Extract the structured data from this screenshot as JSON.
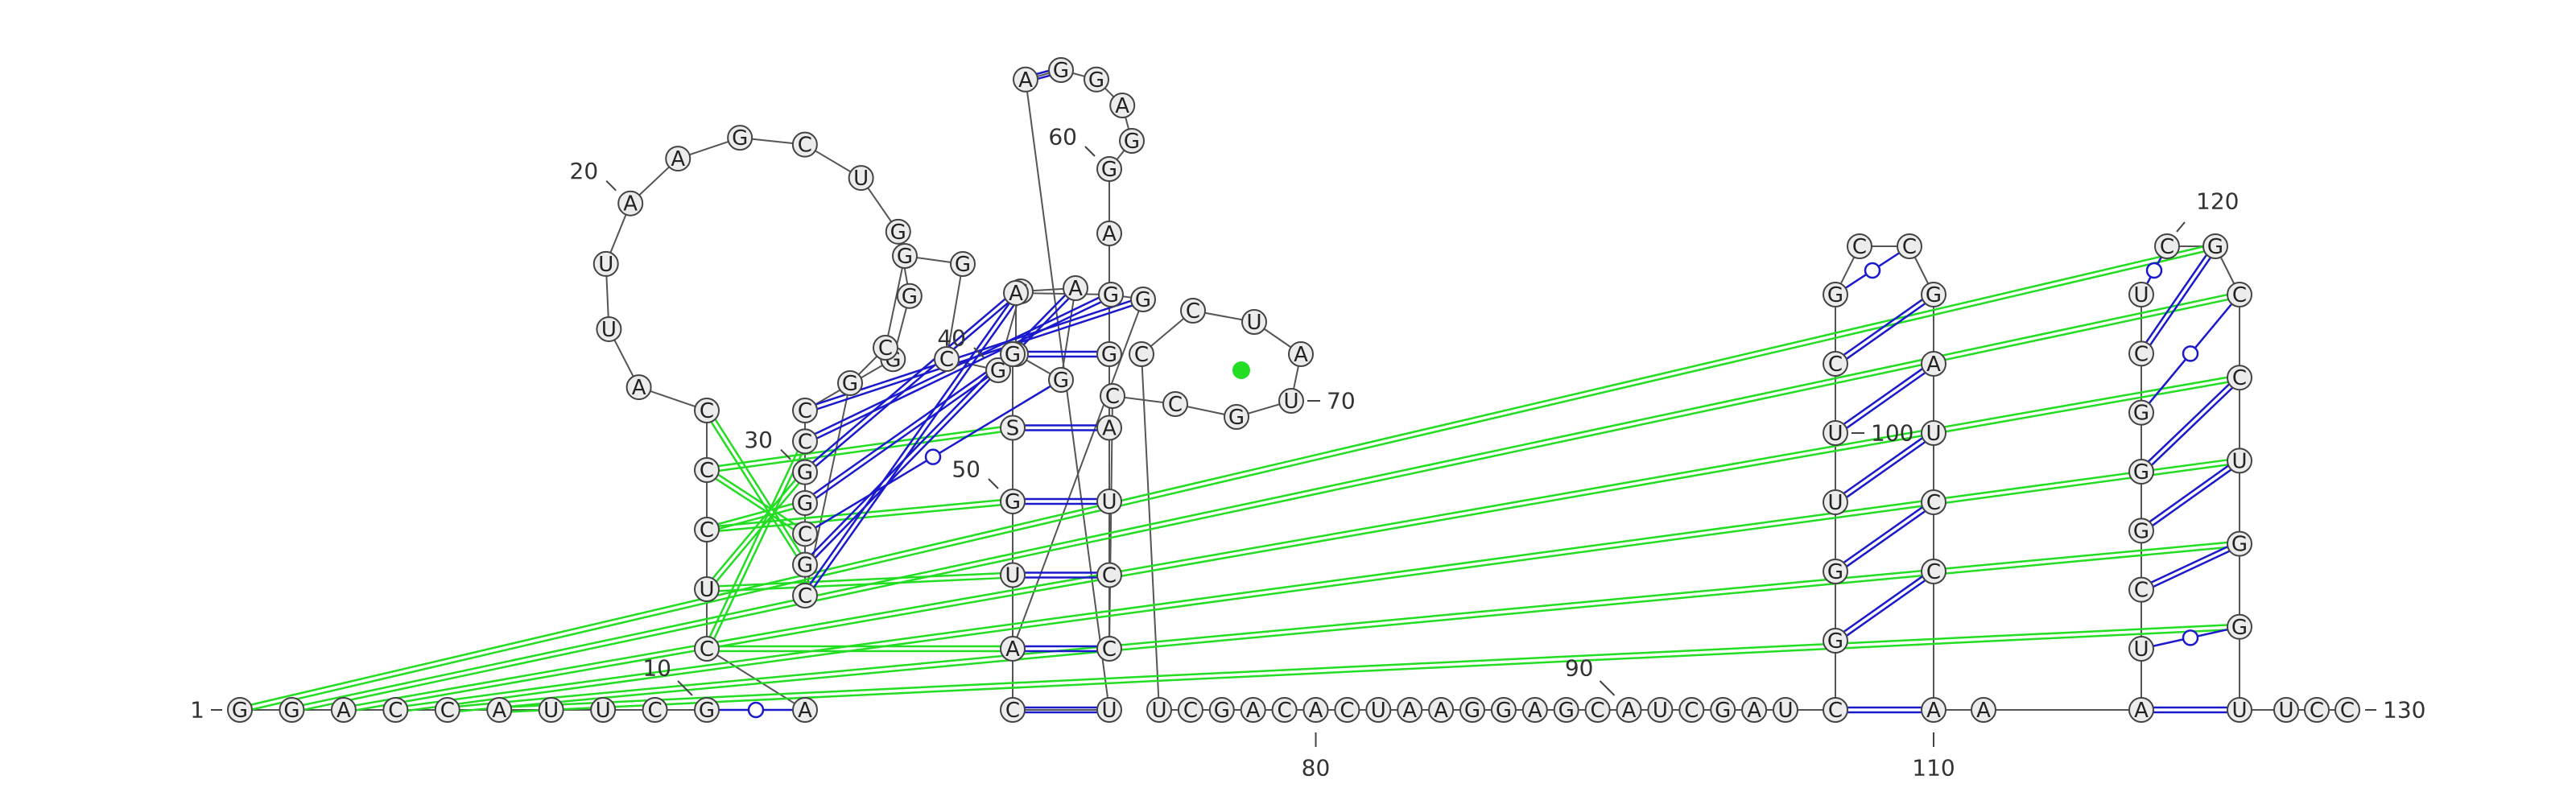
{
  "colors": {
    "canonical_pair": "#1a1acc",
    "wobble_pair": "#1a1acc",
    "pseudoknot": "#22dd22",
    "node_fill": "#ececec",
    "node_stroke": "#444444"
  },
  "nucleotides": [
    {
      "n": 1,
      "b": "G"
    },
    {
      "n": 2,
      "b": "G"
    },
    {
      "n": 3,
      "b": "A"
    },
    {
      "n": 4,
      "b": "C"
    },
    {
      "n": 5,
      "b": "C"
    },
    {
      "n": 6,
      "b": "A"
    },
    {
      "n": 7,
      "b": "U"
    },
    {
      "n": 8,
      "b": "U"
    },
    {
      "n": 9,
      "b": "C"
    },
    {
      "n": 10,
      "b": "G"
    },
    {
      "n": 11,
      "b": "A"
    },
    {
      "n": 12,
      "b": "C"
    },
    {
      "n": 13,
      "b": "U"
    },
    {
      "n": 14,
      "b": "C"
    },
    {
      "n": 15,
      "b": "C"
    },
    {
      "n": 16,
      "b": "C"
    },
    {
      "n": 17,
      "b": "A"
    },
    {
      "n": 18,
      "b": "U"
    },
    {
      "n": 19,
      "b": "U"
    },
    {
      "n": 20,
      "b": "A"
    },
    {
      "n": 21,
      "b": "A"
    },
    {
      "n": 22,
      "b": "G"
    },
    {
      "n": 23,
      "b": "C"
    },
    {
      "n": 24,
      "b": "U"
    },
    {
      "n": 25,
      "b": "G"
    },
    {
      "n": 26,
      "b": "G"
    },
    {
      "n": 27,
      "b": "G"
    },
    {
      "n": 28,
      "b": "C"
    },
    {
      "n": 29,
      "b": "C"
    },
    {
      "n": 30,
      "b": "G"
    },
    {
      "n": 31,
      "b": "G"
    },
    {
      "n": 32,
      "b": "C"
    },
    {
      "n": 33,
      "b": "G"
    },
    {
      "n": 34,
      "b": "C"
    },
    {
      "n": 35,
      "b": "G"
    },
    {
      "n": 36,
      "b": "C"
    },
    {
      "n": 37,
      "b": "G"
    },
    {
      "n": 38,
      "b": "G"
    },
    {
      "n": 39,
      "b": "C"
    },
    {
      "n": 40,
      "b": "G"
    },
    {
      "n": 41,
      "b": "G"
    },
    {
      "n": 42,
      "b": "A"
    },
    {
      "n": 43,
      "b": "G"
    },
    {
      "n": 44,
      "b": "G"
    },
    {
      "n": 45,
      "b": "A"
    },
    {
      "n": 46,
      "b": "G"
    },
    {
      "n": 47,
      "b": "G"
    },
    {
      "n": 48,
      "b": "A"
    },
    {
      "n": 49,
      "b": "U"
    },
    {
      "n": 50,
      "b": "G"
    },
    {
      "n": 51,
      "b": "S"
    },
    {
      "n": 52,
      "b": "G"
    },
    {
      "n": 53,
      "b": "C"
    },
    {
      "n": 54,
      "b": "U"
    },
    {
      "n": 55,
      "b": "A"
    },
    {
      "n": 56,
      "b": "G"
    },
    {
      "n": 57,
      "b": "G"
    },
    {
      "n": 58,
      "b": "A"
    },
    {
      "n": 59,
      "b": "G"
    },
    {
      "n": 60,
      "b": "G"
    },
    {
      "n": 61,
      "b": "A"
    },
    {
      "n": 62,
      "b": "G"
    },
    {
      "n": 63,
      "b": "A"
    },
    {
      "n": 64,
      "b": "U"
    },
    {
      "n": 65,
      "b": "C"
    },
    {
      "n": 66,
      "b": "C"
    },
    {
      "n": 67,
      "b": "C"
    },
    {
      "n": 68,
      "b": "C"
    },
    {
      "n": 69,
      "b": "G"
    },
    {
      "n": 70,
      "b": "U"
    },
    {
      "n": 71,
      "b": "A"
    },
    {
      "n": 72,
      "b": "U"
    },
    {
      "n": 73,
      "b": "C"
    },
    {
      "n": 74,
      "b": "C"
    },
    {
      "n": 75,
      "b": "U"
    },
    {
      "n": 76,
      "b": "C"
    },
    {
      "n": 77,
      "b": "G"
    },
    {
      "n": 78,
      "b": "A"
    },
    {
      "n": 79,
      "b": "C"
    },
    {
      "n": 80,
      "b": "A"
    },
    {
      "n": 81,
      "b": "C"
    },
    {
      "n": 82,
      "b": "U"
    },
    {
      "n": 83,
      "b": "A"
    },
    {
      "n": 84,
      "b": "A"
    },
    {
      "n": 85,
      "b": "G"
    },
    {
      "n": 86,
      "b": "G"
    },
    {
      "n": 87,
      "b": "A"
    },
    {
      "n": 88,
      "b": "G"
    },
    {
      "n": 89,
      "b": "C"
    },
    {
      "n": 90,
      "b": "A"
    },
    {
      "n": 91,
      "b": "U"
    },
    {
      "n": 92,
      "b": "C"
    },
    {
      "n": 93,
      "b": "G"
    },
    {
      "n": 94,
      "b": "A"
    },
    {
      "n": 95,
      "b": "U"
    },
    {
      "n": 96,
      "b": "C"
    },
    {
      "n": 97,
      "b": "G"
    },
    {
      "n": 98,
      "b": "G"
    },
    {
      "n": 99,
      "b": "U"
    },
    {
      "n": 100,
      "b": "U"
    },
    {
      "n": 101,
      "b": "C"
    },
    {
      "n": 102,
      "b": "G"
    },
    {
      "n": 103,
      "b": "C"
    },
    {
      "n": 104,
      "b": "C"
    },
    {
      "n": 105,
      "b": "G"
    },
    {
      "n": 106,
      "b": "A"
    },
    {
      "n": 107,
      "b": "U"
    },
    {
      "n": 108,
      "b": "C"
    },
    {
      "n": 109,
      "b": "C"
    },
    {
      "n": 110,
      "b": "A"
    },
    {
      "n": 111,
      "b": "A"
    },
    {
      "n": 112,
      "b": "A"
    },
    {
      "n": 113,
      "b": "U"
    },
    {
      "n": 114,
      "b": "C"
    },
    {
      "n": 115,
      "b": "G"
    },
    {
      "n": 116,
      "b": "G"
    },
    {
      "n": 117,
      "b": "G"
    },
    {
      "n": 118,
      "b": "C"
    },
    {
      "n": 119,
      "b": "U"
    },
    {
      "n": 120,
      "b": "C"
    },
    {
      "n": 121,
      "b": "G"
    },
    {
      "n": 122,
      "b": "C"
    },
    {
      "n": 123,
      "b": "C"
    },
    {
      "n": 124,
      "b": "U"
    },
    {
      "n": 125,
      "b": "G"
    },
    {
      "n": 126,
      "b": "G"
    },
    {
      "n": 127,
      "b": "U"
    },
    {
      "n": 128,
      "b": "U"
    },
    {
      "n": 129,
      "b": "C"
    },
    {
      "n": 130,
      "b": "C"
    }
  ],
  "base_pairs": [
    {
      "i": 10,
      "j": 11,
      "type": "wobble"
    },
    {
      "i": 53,
      "j": 54,
      "type": "canonical"
    },
    {
      "i": 55,
      "j": 56,
      "type": "canonical"
    },
    {
      "i": 28,
      "j": 47,
      "type": "canonical"
    },
    {
      "i": 29,
      "j": 46,
      "type": "canonical"
    },
    {
      "i": 30,
      "j": 45,
      "type": "canonical"
    },
    {
      "i": 31,
      "j": 44,
      "type": "canonical"
    },
    {
      "i": 32,
      "j": 43,
      "type": "wobble"
    },
    {
      "i": 33,
      "j": 42,
      "type": "canonical"
    },
    {
      "i": 34,
      "j": 41,
      "type": "canonical"
    },
    {
      "i": 96,
      "j": 110,
      "type": "canonical"
    },
    {
      "i": 97,
      "j": 109,
      "type": "canonical"
    },
    {
      "i": 98,
      "j": 108,
      "type": "canonical"
    },
    {
      "i": 99,
      "j": 107,
      "type": "canonical"
    },
    {
      "i": 100,
      "j": 106,
      "type": "canonical"
    },
    {
      "i": 101,
      "j": 105,
      "type": "canonical"
    },
    {
      "i": 102,
      "j": 104,
      "type": "wobble"
    },
    {
      "i": 112,
      "j": 127,
      "type": "canonical"
    },
    {
      "i": 113,
      "j": 126,
      "type": "wobble"
    },
    {
      "i": 114,
      "j": 125,
      "type": "canonical"
    },
    {
      "i": 115,
      "j": 124,
      "type": "canonical"
    },
    {
      "i": 116,
      "j": 123,
      "type": "canonical"
    },
    {
      "i": 117,
      "j": 122,
      "type": "wobble"
    },
    {
      "i": 118,
      "j": 121,
      "type": "canonical"
    },
    {
      "i": 119,
      "j": 120,
      "type": "wobble"
    },
    {
      "i": 48,
      "j": 66,
      "type": "canonical"
    },
    {
      "i": 49,
      "j": 65,
      "type": "canonical"
    },
    {
      "i": 50,
      "j": 64,
      "type": "canonical"
    },
    {
      "i": 51,
      "j": 63,
      "type": "canonical"
    },
    {
      "i": 52,
      "j": 62,
      "type": "canonical"
    }
  ],
  "pseudoknot_pairs": [
    {
      "i": 1,
      "j": 121
    },
    {
      "i": 2,
      "j": 122
    },
    {
      "i": 3,
      "j": 123
    },
    {
      "i": 4,
      "j": 124
    },
    {
      "i": 5,
      "j": 125
    },
    {
      "i": 6,
      "j": 126
    },
    {
      "i": 12,
      "j": 29
    },
    {
      "i": 13,
      "j": 30
    },
    {
      "i": 14,
      "j": 31
    },
    {
      "i": 15,
      "j": 32
    },
    {
      "i": 16,
      "j": 33
    },
    {
      "i": 12,
      "j": 48
    },
    {
      "i": 13,
      "j": 49
    },
    {
      "i": 14,
      "j": 50
    },
    {
      "i": 15,
      "j": 51
    }
  ],
  "position_labels": [
    {
      "n": 1,
      "text": "1"
    },
    {
      "n": 10,
      "text": "10"
    },
    {
      "n": 20,
      "text": "20"
    },
    {
      "n": 30,
      "text": "30"
    },
    {
      "n": 40,
      "text": "40"
    },
    {
      "n": 50,
      "text": "50"
    },
    {
      "n": 60,
      "text": "60"
    },
    {
      "n": 70,
      "text": "70"
    },
    {
      "n": 80,
      "text": "80"
    },
    {
      "n": 90,
      "text": "90"
    },
    {
      "n": 100,
      "text": "100"
    },
    {
      "n": 110,
      "text": "110"
    },
    {
      "n": 120,
      "text": "120"
    },
    {
      "n": 130,
      "text": "130"
    }
  ]
}
